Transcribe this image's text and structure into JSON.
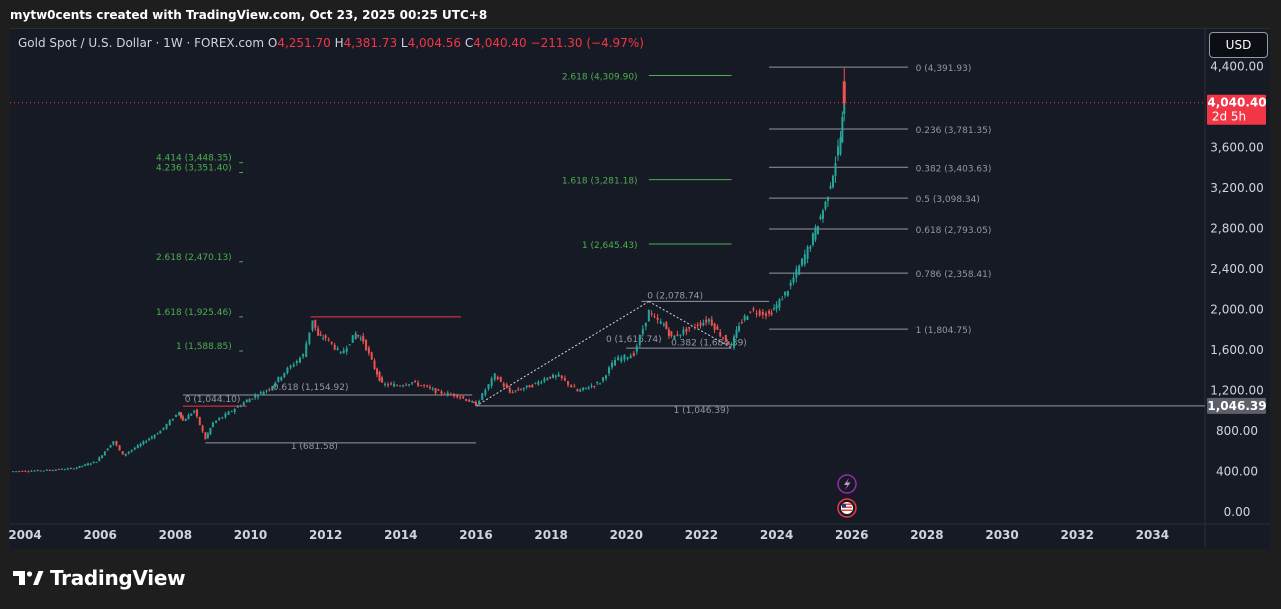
{
  "header": {
    "snapshot_text": "mytw0cents created with TradingView.com, Oct 23, 2025 00:25 UTC+8"
  },
  "legend": {
    "symbol": "Gold Spot / U.S. Dollar · 1W · FOREX.com",
    "open_key": "O",
    "open_value": "4,251.70",
    "high_key": "H",
    "high_value": "4,381.73",
    "low_key": "L",
    "low_value": "4,004.56",
    "close_key": "C",
    "close_value": "4,040.40",
    "change": "−211.30 (−4.97%)"
  },
  "currency_button": "USD",
  "footer": {
    "brand": "TradingView"
  },
  "colors": {
    "background": "#161a25",
    "up": "#26a69a",
    "down": "#ef5350",
    "fib_green": "#4caf50",
    "fib_gray": "#9598a1",
    "fib_red": "#f23645",
    "price_badge": "#f23645",
    "level_badge": "#5d606b"
  },
  "chart_data": {
    "type": "line",
    "instrument": "Gold Spot / U.S. Dollar",
    "interval": "1W",
    "x_range": [
      2003.6,
      2035.4
    ],
    "y_range": [
      -80,
      4660
    ],
    "x_ticks": [
      "2004",
      "2006",
      "2008",
      "2010",
      "2012",
      "2014",
      "2016",
      "2018",
      "2020",
      "2022",
      "2024",
      "2026",
      "2028",
      "2030",
      "2032",
      "2034"
    ],
    "y_ticks": [
      "4,400.00",
      "3,600.00",
      "3,200.00",
      "2,800.00",
      "2,400.00",
      "2,000.00",
      "1,600.00",
      "1,200.00",
      "800.00",
      "400.00",
      "0.00"
    ],
    "price_series": {
      "x": [
        2003.6,
        2004.5,
        2005.3,
        2005.9,
        2006.35,
        2006.6,
        2007.0,
        2007.6,
        2008.1,
        2008.2,
        2008.5,
        2008.8,
        2009.0,
        2009.5,
        2009.9,
        2010.5,
        2010.9,
        2011.4,
        2011.65,
        2011.8,
        2012.0,
        2012.4,
        2012.8,
        2013.0,
        2013.3,
        2013.5,
        2013.9,
        2014.3,
        2014.7,
        2015.0,
        2015.5,
        2015.9,
        2016.0,
        2016.5,
        2016.9,
        2017.5,
        2017.9,
        2018.2,
        2018.7,
        2019.3,
        2019.7,
        2020.2,
        2020.6,
        2020.75,
        2021.0,
        2021.2,
        2021.6,
        2022.2,
        2022.5,
        2022.8,
        2023.0,
        2023.3,
        2023.8,
        2024.0,
        2024.3,
        2024.6,
        2024.9,
        2025.1,
        2025.3,
        2025.5,
        2025.7,
        2025.8
      ],
      "y": [
        400,
        410,
        430,
        500,
        700,
        560,
        650,
        800,
        990,
        900,
        1000,
        720,
        880,
        1000,
        1100,
        1220,
        1380,
        1550,
        1900,
        1730,
        1720,
        1560,
        1760,
        1690,
        1420,
        1260,
        1250,
        1280,
        1230,
        1180,
        1150,
        1080,
        1060,
        1350,
        1180,
        1250,
        1330,
        1340,
        1190,
        1280,
        1500,
        1560,
        1980,
        1900,
        1850,
        1720,
        1800,
        1900,
        1750,
        1640,
        1850,
        1990,
        1950,
        2040,
        2200,
        2420,
        2650,
        2850,
        3050,
        3350,
        3700,
        4040
      ]
    },
    "fib_extensions_left": [
      {
        "label": "4.414 (3,448.35)"
      },
      {
        "label": "4.236 (3,351.40)"
      },
      {
        "label": "2.618 (2,470.13)"
      },
      {
        "label": "1.618 (1,925.46)"
      },
      {
        "label": "1 (1,588.85)"
      }
    ],
    "fib_extensions_right": [
      {
        "label": "2.618 (4,309.90)"
      },
      {
        "label": "1.618 (3,281.18)"
      },
      {
        "label": "1 (2,645.43)"
      }
    ],
    "fib_retracement_2008_2011": [
      {
        "label": "0 (1,044.10)"
      },
      {
        "label": "0.618 (1,154.92)"
      },
      {
        "label": "1 (681.58)"
      }
    ],
    "fib_retracement_2015_2022": [
      {
        "label": "0 (2,078.74)"
      },
      {
        "label": "0 (1,616.74)"
      },
      {
        "label": "0.382 (1,684.39)"
      },
      {
        "label": "1 (1,046.39)"
      }
    ],
    "fib_retracement_2023_2025": [
      {
        "label": "0 (4,391.93)"
      },
      {
        "label": "0.236 (3,781.35)"
      },
      {
        "label": "0.382 (3,403.63)"
      },
      {
        "label": "0.5 (3,098.34)"
      },
      {
        "label": "0.618 (2,793.05)"
      },
      {
        "label": "0.786 (2,358.41)"
      },
      {
        "label": "1 (1,804.75)"
      }
    ],
    "price_badge": {
      "value": "4,040.40",
      "countdown": "2d 5h"
    },
    "level_badge": {
      "value": "1,046.39"
    }
  }
}
